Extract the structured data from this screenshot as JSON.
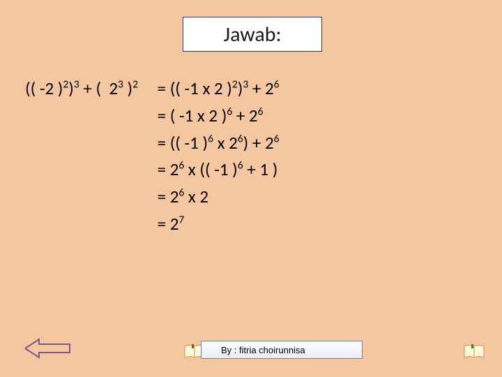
{
  "title": "Jawab:",
  "lhs": {
    "parts": [
      "(( -2 )",
      "2",
      ")",
      "3",
      " + (  2",
      "3",
      " )",
      "2"
    ]
  },
  "rhs": [
    {
      "parts": [
        "= (( -1 x 2 )",
        "2",
        ")",
        "3",
        " + 2",
        "6"
      ]
    },
    {
      "parts": [
        "= ( -1 x 2 )",
        "6",
        " + 2",
        "6"
      ]
    },
    {
      "parts": [
        "= (( -1 )",
        "6",
        " x 2",
        "6",
        ") + 2",
        "6"
      ]
    },
    {
      "parts": [
        "= 2",
        "6",
        " x (( -1 )",
        "6",
        " + 1 )"
      ]
    },
    {
      "parts": [
        "= 2",
        "6",
        " x 2"
      ]
    },
    {
      "parts": [
        "= 2",
        "7"
      ]
    }
  ],
  "author_label": "By : fitria choirunnisa",
  "colors": {
    "background": "#f4c7a1",
    "box_bg": "#ffffff",
    "box_border": "#2a3a6a",
    "author_border": "#6a80b8",
    "arrow_fill": "#f4c7a1",
    "arrow_stroke": "#7a5a8a",
    "book_page": "#fff8e0",
    "book_edge": "#c49a3a",
    "book_green": "#3a7a3a"
  }
}
